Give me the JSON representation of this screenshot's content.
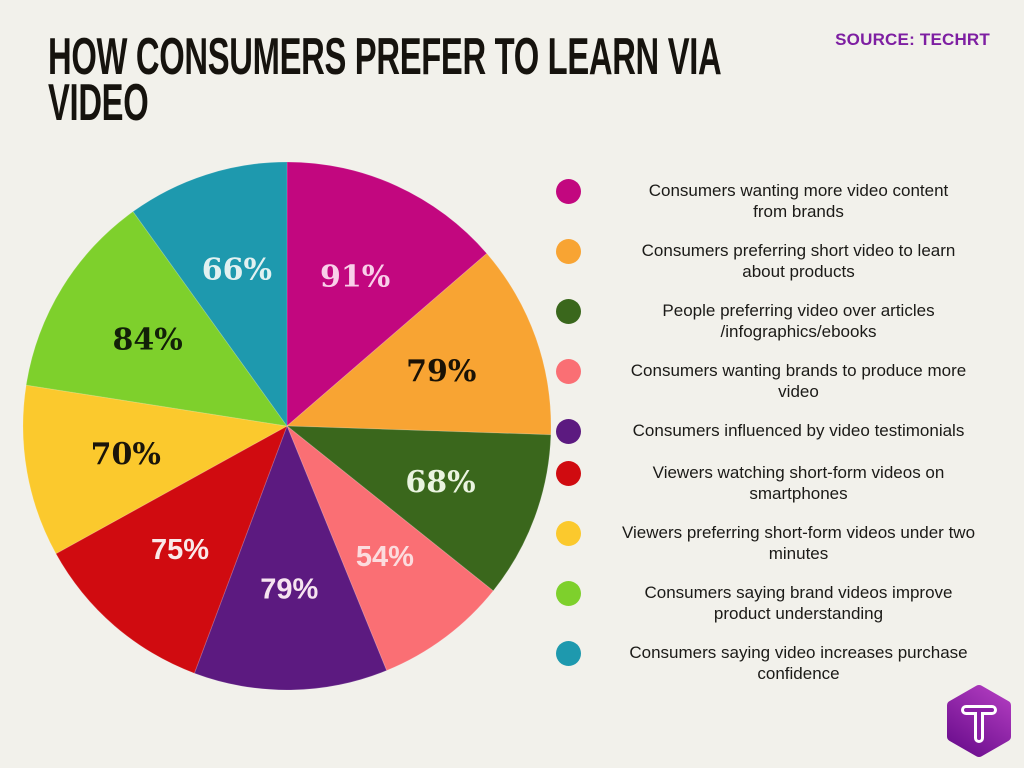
{
  "page": {
    "background": "#F2F1EB",
    "title_line1": "HOW CONSUMERS PREFER TO LEARN VIA",
    "title_line2": "VIDEO",
    "source": "SOURCE: TECHRT",
    "source_color": "#7E1FA2"
  },
  "chart_data": {
    "type": "pie",
    "title": "How consumers prefer to learn via video",
    "unit": "%",
    "start_angle_deg": 0,
    "direction": "clockwise",
    "legend_position": "right",
    "slices": [
      {
        "label": "Consumers wanting more video content\nfrom brands",
        "value": 91,
        "pct_label": "91%",
        "color": "#C2077F",
        "label_color": "#F9CFE9"
      },
      {
        "label": "Consumers preferring short video to learn\nabout products",
        "value": 79,
        "pct_label": "79%",
        "color": "#F8A433",
        "label_color": "#1A1205"
      },
      {
        "label": "People preferring video over articles\n/infographics/ebooks",
        "value": 68,
        "pct_label": "68%",
        "color": "#3A671C",
        "label_color": "#EAF4E0"
      },
      {
        "label": "Consumers wanting brands to produce more\nvideo",
        "value": 54,
        "pct_label": "54%",
        "color": "#FA6F74",
        "label_color": "#FCDCDE"
      },
      {
        "label": "Consumers influenced by video testimonials",
        "value": 79,
        "pct_label": "79%",
        "color": "#5C1A80",
        "label_color": "#F6E4F0"
      },
      {
        "label": "Viewers watching short-form videos on\nsmartphones",
        "value": 75,
        "pct_label": "75%",
        "color": "#D00B10",
        "label_color": "#FAE9E9"
      },
      {
        "label": "Viewers preferring short-form videos under two\nminutes",
        "value": 70,
        "pct_label": "70%",
        "color": "#FBC92D",
        "label_color": "#1A150A"
      },
      {
        "label": "Consumers saying brand videos improve\nproduct understanding",
        "value": 84,
        "pct_label": "84%",
        "color": "#7ED02C",
        "label_color": "#122008"
      },
      {
        "label": "Consumers saying video increases purchase\nconfidence",
        "value": 66,
        "pct_label": "66%",
        "color": "#1E99AE",
        "label_color": "#E2F1F1"
      }
    ]
  },
  "logo": {
    "letter": "T",
    "color_top": "#AC39BC",
    "color_bottom": "#6F1090"
  }
}
